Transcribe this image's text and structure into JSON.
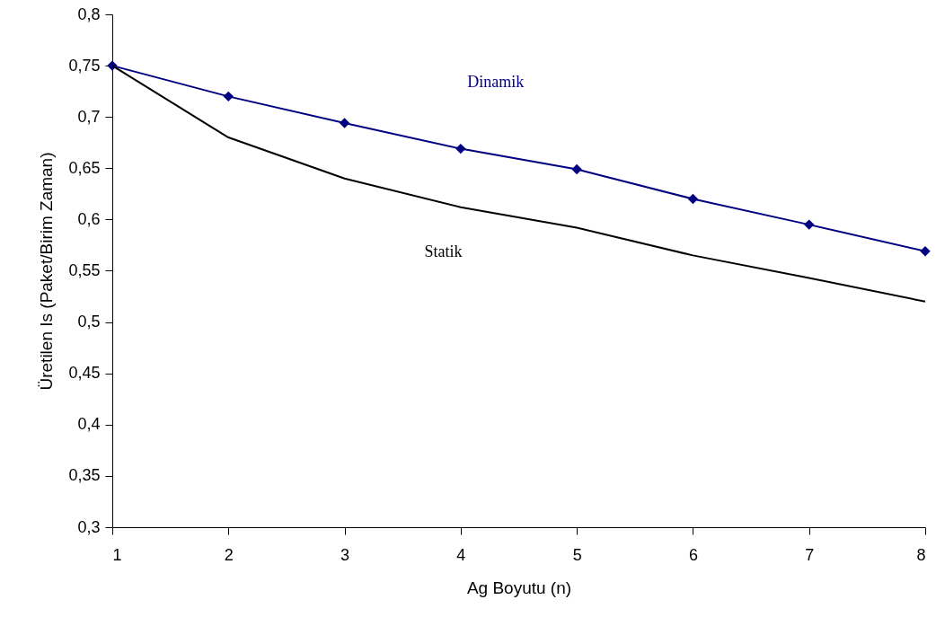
{
  "chart_data": {
    "type": "line",
    "xlabel": "Ag Boyutu (n)",
    "ylabel": "Üretilen Is (Paket/Birim Zaman)",
    "x": [
      1,
      2,
      3,
      4,
      5,
      6,
      7,
      8
    ],
    "series": [
      {
        "name": "Dinamik",
        "color": "#000080",
        "marker": "diamond",
        "values": [
          0.75,
          0.72,
          0.694,
          0.669,
          0.649,
          0.62,
          0.595,
          0.569
        ]
      },
      {
        "name": "Statik",
        "color": "#000000",
        "marker": "none",
        "values": [
          0.75,
          0.68,
          0.64,
          0.612,
          0.592,
          0.565,
          0.543,
          0.52
        ]
      }
    ],
    "xlim": [
      1,
      8
    ],
    "xticks": [
      1,
      2,
      3,
      4,
      5,
      6,
      7,
      8
    ],
    "ylim": [
      0.3,
      0.8
    ],
    "yticks": [
      {
        "value": 0.3,
        "label": "0,3"
      },
      {
        "value": 0.35,
        "label": "0,35"
      },
      {
        "value": 0.4,
        "label": "0,4"
      },
      {
        "value": 0.45,
        "label": "0,45"
      },
      {
        "value": 0.5,
        "label": "0,5"
      },
      {
        "value": 0.55,
        "label": "0,55"
      },
      {
        "value": 0.6,
        "label": "0,6"
      },
      {
        "value": 0.65,
        "label": "0,65"
      },
      {
        "value": 0.7,
        "label": "0,7"
      },
      {
        "value": 0.75,
        "label": "0,75"
      },
      {
        "value": 0.8,
        "label": "0,8"
      }
    ],
    "grid": false,
    "line_style": "solid"
  }
}
